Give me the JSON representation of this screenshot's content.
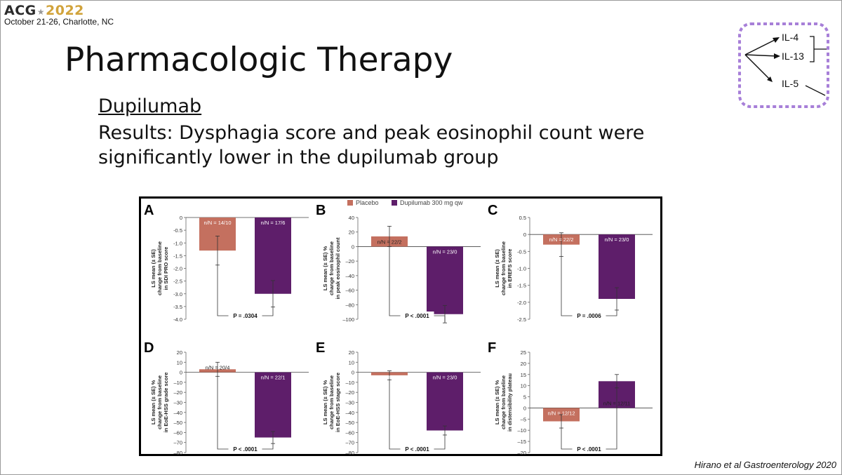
{
  "header": {
    "logo_text": "ACG",
    "logo_year": "2022",
    "date_location": "October 21-26, Charlotte, NC"
  },
  "slide": {
    "title": "Pharmacologic Therapy",
    "drug_name": "Dupilumab",
    "results_text": "Results: Dysphagia score and peak eosinophil count were significantly lower in the dupilumab group"
  },
  "pathway": {
    "labels": [
      "IL-4",
      "IL-13",
      "IL-5"
    ],
    "border_color": "#a77fd8"
  },
  "citation": "Hirano et al Gastroenterology 2020",
  "colors": {
    "placebo": "#c4705f",
    "dupilumab": "#5e1e6a"
  },
  "chart_data": {
    "type": "bar",
    "legend": {
      "placebo": "Placebo",
      "dupilumab": "Dupilumab 300 mg qw",
      "position": "top"
    },
    "panels": [
      {
        "letter": "A",
        "ylabel": [
          "LS mean (± SE)",
          "change from baseline",
          "in SDI PRO score"
        ],
        "ylim": [
          -4.0,
          0
        ],
        "ticks": [
          0,
          -0.5,
          -1.0,
          -1.5,
          -2.0,
          -2.5,
          -3.0,
          -3.5,
          -4.0
        ],
        "tick_labels": [
          "0",
          "-0.5",
          "-1.0",
          "-1.5",
          "-2.0",
          "-2.5",
          "-3.0",
          "-3.5",
          "-4.0"
        ],
        "placebo": {
          "value": -1.3,
          "se": 0.57,
          "n": "n/N = 14/10"
        },
        "dupilumab": {
          "value": -3.0,
          "se": 0.52,
          "n": "n/N = 17/6"
        },
        "p_value": "P = .0304"
      },
      {
        "letter": "B",
        "ylabel": [
          "LS mean (± SE) %",
          "change from baseline",
          "in peak eosinophil count"
        ],
        "ylim": [
          -100,
          40
        ],
        "ticks": [
          40,
          20,
          0,
          -20,
          -40,
          -60,
          -80,
          -100
        ],
        "tick_labels": [
          "40",
          "20",
          "0",
          "–20",
          "–40",
          "–60",
          "–80",
          "–100"
        ],
        "placebo": {
          "value": 14,
          "se": 14,
          "n": "n/N = 22/2"
        },
        "dupilumab": {
          "value": -93,
          "se": 12,
          "n": "n/N = 23/0"
        },
        "p_value": "P < .0001"
      },
      {
        "letter": "C",
        "ylabel": [
          "LS mean (± SE)",
          "change from baseline",
          "in EREFS score"
        ],
        "ylim": [
          -2.5,
          0.5
        ],
        "ticks": [
          0.5,
          0,
          -0.5,
          -1.0,
          -1.5,
          -2.0,
          -2.5
        ],
        "tick_labels": [
          "0.5",
          "0",
          "-0.5",
          "-1.0",
          "-1.5",
          "-2.0",
          "-2.5"
        ],
        "placebo": {
          "value": -0.3,
          "se": 0.35,
          "n": "n/N = 22/2"
        },
        "dupilumab": {
          "value": -1.9,
          "se": 0.33,
          "n": "n/N = 23/0"
        },
        "p_value": "P = .0006"
      },
      {
        "letter": "D",
        "ylabel": [
          "LS mean (± SE) %",
          "change from baseline",
          "in EoE-HSS grade score"
        ],
        "ylim": [
          -80,
          20
        ],
        "ticks": [
          20,
          10,
          0,
          -10,
          -20,
          -30,
          -40,
          -50,
          -60,
          -70,
          -80
        ],
        "tick_labels": [
          "20",
          "10",
          "0",
          "–10",
          "–20",
          "–30",
          "–40",
          "–50",
          "–60",
          "–70",
          "–80"
        ],
        "placebo": {
          "value": 3,
          "se": 7,
          "n": "n/N = 20/4"
        },
        "dupilumab": {
          "value": -65,
          "se": 6,
          "n": "n/N = 22/1"
        },
        "p_value": "P < .0001"
      },
      {
        "letter": "E",
        "ylabel": [
          "LS mean (± SE) %",
          "change from baseline",
          "in EoE-HSS stage score"
        ],
        "ylim": [
          -80,
          20
        ],
        "ticks": [
          20,
          10,
          0,
          -10,
          -20,
          -30,
          -40,
          -50,
          -60,
          -70,
          -80
        ],
        "tick_labels": [
          "20",
          "10",
          "0",
          "–10",
          "–20",
          "–30",
          "–40",
          "–50",
          "–60",
          "–70",
          "–80"
        ],
        "placebo": {
          "value": -3,
          "se": 4.5,
          "n": "n/N = 20/4"
        },
        "dupilumab": {
          "value": -58,
          "se": 4.5,
          "n": "n/N = 23/0"
        },
        "p_value": "P < .0001"
      },
      {
        "letter": "F",
        "ylabel": [
          "LS mean (± SE) %",
          "change from baseline",
          "in distensibility plateau"
        ],
        "ylim": [
          -20,
          25
        ],
        "ticks": [
          25,
          20,
          15,
          10,
          5,
          0,
          -5,
          -10,
          -15,
          -20
        ],
        "tick_labels": [
          "25",
          "20",
          "15",
          "10",
          "5",
          "0",
          "–5",
          "–10",
          "–15",
          "–20"
        ],
        "placebo": {
          "value": -6,
          "se": 3,
          "n": "n/N = 12/12"
        },
        "dupilumab": {
          "value": 12,
          "se": 3,
          "n": "n/N = 12/11"
        },
        "p_value": "P < .0001"
      }
    ]
  }
}
